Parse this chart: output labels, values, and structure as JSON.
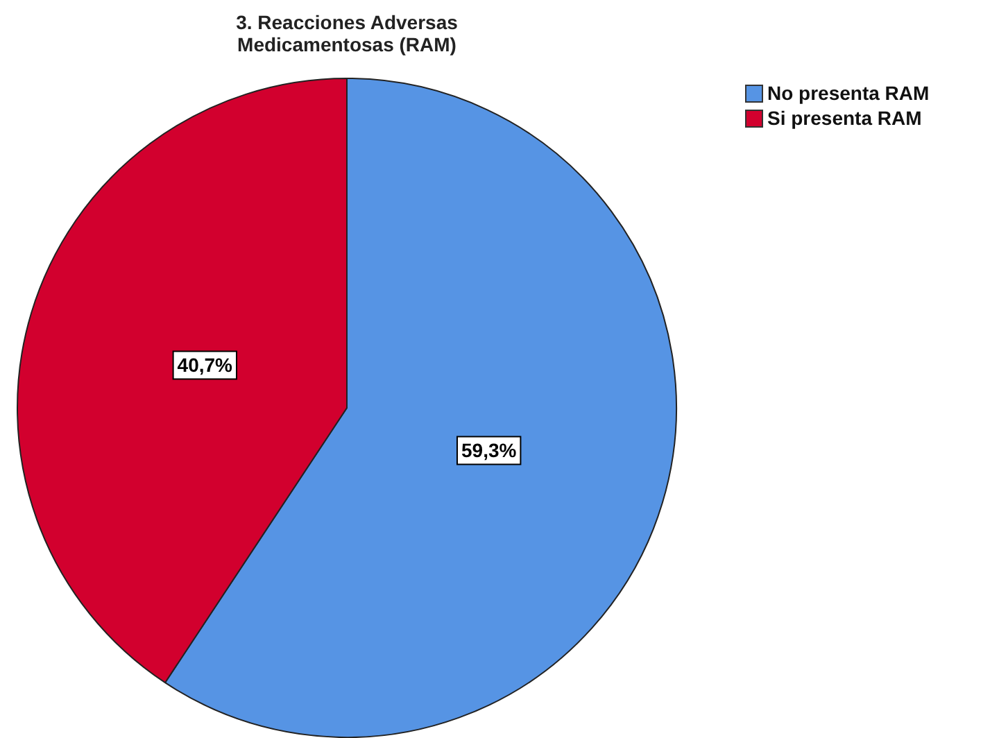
{
  "chart_data": {
    "type": "pie",
    "title": "3. Reacciones Adversas Medicamentosas (RAM)",
    "categories": [
      "No presenta RAM",
      "Si presenta RAM"
    ],
    "values": [
      59.3,
      40.7
    ],
    "colors": [
      "#5694e4",
      "#d2002e"
    ],
    "value_labels": [
      "59,3%",
      "40,7%"
    ],
    "legend": "top right"
  }
}
